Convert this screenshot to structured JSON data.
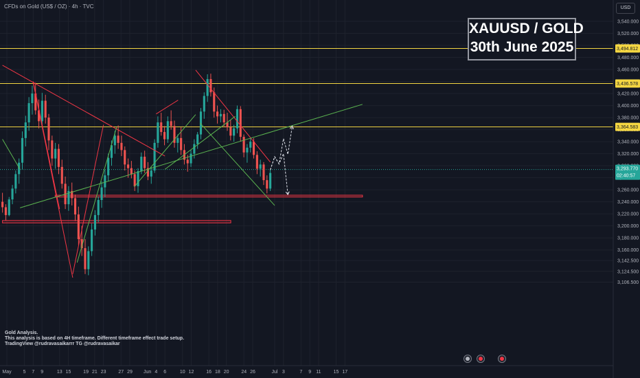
{
  "header": {
    "symbol_text": "CFDs on Gold (US$ / OZ) · 4h · TVC"
  },
  "currency_button": "USD",
  "title_box": {
    "line1": "XAUUSD / GOLD",
    "line2": "30th June 2025"
  },
  "notes": [
    "Gold Analysis.",
    "This analysis is based on 4H timeframe. Different timeframe effect trade setup.",
    "TradingView @rudravasaikarrr TG @rudravasaikar"
  ],
  "colors": {
    "background": "#131722",
    "bull": "#26a69a",
    "bear": "#ef5350",
    "resistance": "#f5d742",
    "trendline_red": "#f23645",
    "trendline_green": "#5bb450",
    "price_tag": "#26a69a"
  },
  "chart_data": {
    "type": "candlestick",
    "timeframe": "4h",
    "y_axis": {
      "min": 3100,
      "max": 3550,
      "ticks": [
        "3,540.000",
        "3,520.000",
        "3,500.000",
        "3,480.000",
        "3,460.000",
        "3,440.000",
        "3,420.000",
        "3,400.000",
        "3,380.000",
        "3,360.000",
        "3,340.000",
        "3,320.000",
        "3,300.000",
        "3,280.000",
        "3,260.000",
        "3,240.000",
        "3,220.000",
        "3,200.000",
        "3,180.000",
        "3,160.000",
        "3,142.500",
        "3,124.500",
        "3,106.500"
      ]
    },
    "x_axis": {
      "ticks": [
        {
          "label": "May",
          "date": "2025-05-01"
        },
        {
          "label": "5",
          "date": "2025-05-05"
        },
        {
          "label": "7",
          "date": "2025-05-07"
        },
        {
          "label": "9",
          "date": "2025-05-09"
        },
        {
          "label": "13",
          "date": "2025-05-13"
        },
        {
          "label": "15",
          "date": "2025-05-15"
        },
        {
          "label": "19",
          "date": "2025-05-19"
        },
        {
          "label": "21",
          "date": "2025-05-21"
        },
        {
          "label": "23",
          "date": "2025-05-23"
        },
        {
          "label": "27",
          "date": "2025-05-27"
        },
        {
          "label": "29",
          "date": "2025-05-29"
        },
        {
          "label": "Jun",
          "date": "2025-06-02"
        },
        {
          "label": "4",
          "date": "2025-06-04"
        },
        {
          "label": "6",
          "date": "2025-06-06"
        },
        {
          "label": "10",
          "date": "2025-06-10"
        },
        {
          "label": "12",
          "date": "2025-06-12"
        },
        {
          "label": "16",
          "date": "2025-06-16"
        },
        {
          "label": "18",
          "date": "2025-06-18"
        },
        {
          "label": "20",
          "date": "2025-06-20"
        },
        {
          "label": "24",
          "date": "2025-06-24"
        },
        {
          "label": "26",
          "date": "2025-06-26"
        },
        {
          "label": "Jul",
          "date": "2025-07-01"
        },
        {
          "label": "3",
          "date": "2025-07-03"
        },
        {
          "label": "7",
          "date": "2025-07-07"
        },
        {
          "label": "9",
          "date": "2025-07-09"
        },
        {
          "label": "11",
          "date": "2025-07-11"
        },
        {
          "label": "15",
          "date": "2025-07-15"
        },
        {
          "label": "17",
          "date": "2025-07-17"
        }
      ]
    },
    "current_price": {
      "value": "3,293.770",
      "countdown": "02:40:57",
      "level": 3293.77
    },
    "horizontal_levels": [
      {
        "label": "3,494.812",
        "value": 3494.812,
        "color": "#f5d742"
      },
      {
        "label": "3,436.578",
        "value": 3436.578,
        "color": "#f5d742"
      },
      {
        "label": "3,364.583",
        "value": 3364.583,
        "color": "#f5d742"
      }
    ],
    "support_zones": [
      {
        "top": 3251,
        "bottom": 3248,
        "from": "2025-05-12",
        "to": "2025-07-21"
      },
      {
        "top": 3209,
        "bottom": 3205,
        "from": "2025-04-30",
        "to": "2025-06-21"
      }
    ],
    "trendlines": [
      {
        "color": "red",
        "points": [
          [
            "2025-04-30",
            3467
          ],
          [
            "2025-06-06",
            3316
          ]
        ]
      },
      {
        "color": "red",
        "points": [
          [
            "2025-05-07",
            3440
          ],
          [
            "2025-05-13",
            3228
          ]
        ]
      },
      {
        "color": "red",
        "points": [
          [
            "2025-05-07",
            3438
          ],
          [
            "2025-05-16",
            3114
          ]
        ]
      },
      {
        "color": "red",
        "points": [
          [
            "2025-05-16",
            3120
          ],
          [
            "2025-05-23",
            3368
          ]
        ]
      },
      {
        "color": "red",
        "points": [
          [
            "2025-06-04",
            3386
          ],
          [
            "2025-06-09",
            3409
          ]
        ]
      },
      {
        "color": "red",
        "points": [
          [
            "2025-06-13",
            3459
          ],
          [
            "2025-06-30",
            3306
          ]
        ]
      },
      {
        "color": "green",
        "points": [
          [
            "2025-04-30",
            3344
          ],
          [
            "2025-05-04",
            3294
          ]
        ]
      },
      {
        "color": "green",
        "points": [
          [
            "2025-05-04",
            3230
          ],
          [
            "2025-07-21",
            3402
          ]
        ]
      },
      {
        "color": "green",
        "points": [
          [
            "2025-05-17",
            3139
          ],
          [
            "2025-05-26",
            3364
          ]
        ]
      },
      {
        "color": "green",
        "points": [
          [
            "2025-05-30",
            3265
          ],
          [
            "2025-06-13",
            3385
          ]
        ]
      },
      {
        "color": "green",
        "points": [
          [
            "2025-06-06",
            3294
          ],
          [
            "2025-06-22",
            3382
          ]
        ]
      },
      {
        "color": "green",
        "points": [
          [
            "2025-06-14",
            3371
          ],
          [
            "2025-07-01",
            3234
          ]
        ]
      }
    ],
    "projection": {
      "path_a": [
        [
          "2025-06-30",
          3293
        ],
        [
          "2025-07-01",
          3315
        ],
        [
          "2025-07-02",
          3303
        ],
        [
          "2025-07-03",
          3345
        ],
        [
          "2025-07-04",
          3319
        ],
        [
          "2025-07-05",
          3366
        ]
      ],
      "path_b": [
        [
          "2025-06-30",
          3293
        ],
        [
          "2025-07-01",
          3315
        ],
        [
          "2025-07-02",
          3303
        ],
        [
          "2025-07-03",
          3320
        ],
        [
          "2025-07-04",
          3252
        ]
      ]
    },
    "ohlc": [
      [
        3240,
        3255,
        3222,
        3231
      ],
      [
        3231,
        3236,
        3209,
        3218
      ],
      [
        3218,
        3248,
        3216,
        3244
      ],
      [
        3244,
        3268,
        3236,
        3262
      ],
      [
        3262,
        3292,
        3254,
        3286
      ],
      [
        3286,
        3312,
        3270,
        3305
      ],
      [
        3305,
        3357,
        3294,
        3346
      ],
      [
        3346,
        3383,
        3332,
        3372
      ],
      [
        3372,
        3414,
        3358,
        3404
      ],
      [
        3404,
        3433,
        3385,
        3420
      ],
      [
        3420,
        3438,
        3385,
        3392
      ],
      [
        3392,
        3410,
        3362,
        3374
      ],
      [
        3374,
        3421,
        3366,
        3408
      ],
      [
        3408,
        3418,
        3370,
        3380
      ],
      [
        3380,
        3386,
        3326,
        3342
      ],
      [
        3342,
        3350,
        3300,
        3312
      ],
      [
        3312,
        3338,
        3295,
        3328
      ],
      [
        3328,
        3336,
        3286,
        3298
      ],
      [
        3298,
        3310,
        3262,
        3270
      ],
      [
        3270,
        3282,
        3228,
        3236
      ],
      [
        3236,
        3266,
        3225,
        3258
      ],
      [
        3258,
        3272,
        3234,
        3246
      ],
      [
        3246,
        3252,
        3208,
        3219
      ],
      [
        3219,
        3232,
        3168,
        3178
      ],
      [
        3178,
        3200,
        3150,
        3163
      ],
      [
        3163,
        3178,
        3120,
        3128
      ],
      [
        3128,
        3166,
        3118,
        3158
      ],
      [
        3158,
        3204,
        3150,
        3194
      ],
      [
        3194,
        3226,
        3184,
        3218
      ],
      [
        3218,
        3249,
        3206,
        3243
      ],
      [
        3243,
        3274,
        3230,
        3264
      ],
      [
        3264,
        3293,
        3248,
        3284
      ],
      [
        3284,
        3320,
        3274,
        3313
      ],
      [
        3313,
        3342,
        3300,
        3334
      ],
      [
        3334,
        3358,
        3320,
        3350
      ],
      [
        3350,
        3367,
        3328,
        3338
      ],
      [
        3338,
        3350,
        3316,
        3326
      ],
      [
        3326,
        3332,
        3292,
        3302
      ],
      [
        3302,
        3312,
        3280,
        3296
      ],
      [
        3296,
        3308,
        3279,
        3286
      ],
      [
        3286,
        3292,
        3258,
        3266
      ],
      [
        3266,
        3296,
        3255,
        3291
      ],
      [
        3291,
        3322,
        3286,
        3315
      ],
      [
        3315,
        3325,
        3288,
        3296
      ],
      [
        3296,
        3306,
        3276,
        3282
      ],
      [
        3282,
        3298,
        3270,
        3292
      ],
      [
        3292,
        3344,
        3288,
        3338
      ],
      [
        3338,
        3382,
        3330,
        3372
      ],
      [
        3372,
        3388,
        3350,
        3356
      ],
      [
        3356,
        3366,
        3334,
        3344
      ],
      [
        3344,
        3382,
        3338,
        3374
      ],
      [
        3374,
        3392,
        3360,
        3366
      ],
      [
        3366,
        3375,
        3330,
        3338
      ],
      [
        3338,
        3352,
        3322,
        3346
      ],
      [
        3346,
        3364,
        3318,
        3326
      ],
      [
        3326,
        3336,
        3302,
        3310
      ],
      [
        3310,
        3318,
        3290,
        3304
      ],
      [
        3304,
        3326,
        3298,
        3320
      ],
      [
        3320,
        3344,
        3312,
        3336
      ],
      [
        3336,
        3356,
        3328,
        3352
      ],
      [
        3352,
        3396,
        3344,
        3390
      ],
      [
        3390,
        3422,
        3378,
        3416
      ],
      [
        3416,
        3452,
        3406,
        3444
      ],
      [
        3444,
        3453,
        3415,
        3422
      ],
      [
        3422,
        3430,
        3380,
        3390
      ],
      [
        3390,
        3400,
        3370,
        3382
      ],
      [
        3382,
        3394,
        3372,
        3386
      ],
      [
        3386,
        3393,
        3364,
        3372
      ],
      [
        3372,
        3388,
        3358,
        3364
      ],
      [
        3364,
        3376,
        3342,
        3350
      ],
      [
        3350,
        3368,
        3340,
        3362
      ],
      [
        3362,
        3400,
        3354,
        3394
      ],
      [
        3394,
        3399,
        3340,
        3348
      ],
      [
        3348,
        3352,
        3314,
        3322
      ],
      [
        3322,
        3336,
        3305,
        3330
      ],
      [
        3330,
        3346,
        3322,
        3340
      ],
      [
        3340,
        3346,
        3312,
        3318
      ],
      [
        3318,
        3324,
        3286,
        3295
      ],
      [
        3295,
        3310,
        3282,
        3302
      ],
      [
        3302,
        3306,
        3268,
        3276
      ],
      [
        3276,
        3284,
        3254,
        3262
      ],
      [
        3262,
        3294,
        3258,
        3288
      ]
    ],
    "ohlc_start_date": "2025-04-30",
    "ohlc_end_date": "2025-06-30"
  }
}
